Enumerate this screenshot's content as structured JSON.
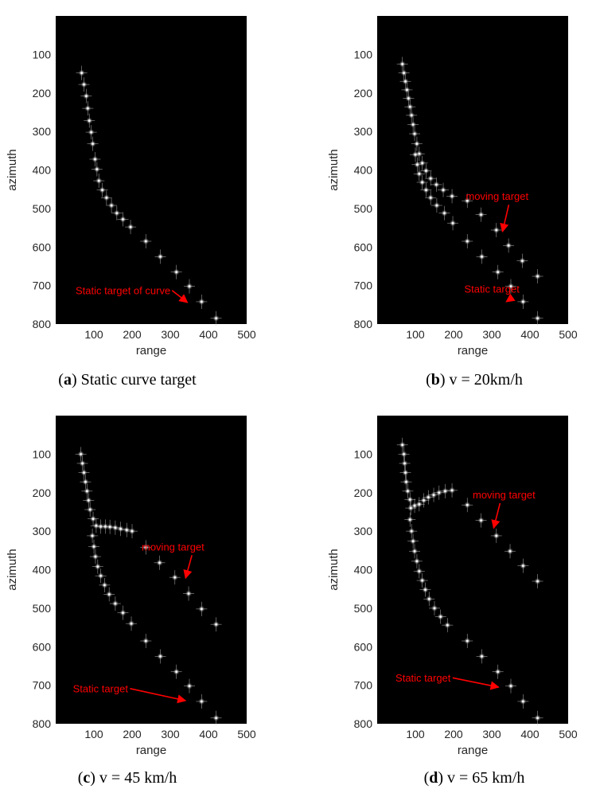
{
  "colors": {
    "plot_background": "#000000",
    "point_color": "#ffffff",
    "annotation_color": "#ff0000",
    "axis_text_color": "#262626"
  },
  "chart_data": [
    {
      "type": "scatter",
      "panel_label": "a",
      "caption": "Static curve target",
      "xlabel": "range",
      "ylabel": "azimuth",
      "xlim": [
        0,
        500
      ],
      "ylim": [
        800,
        0
      ],
      "y_reversed": true,
      "xticks": [
        100,
        200,
        300,
        400,
        500
      ],
      "yticks": [
        100,
        200,
        300,
        400,
        500,
        600,
        700,
        800
      ],
      "series": [
        {
          "points": [
            [
              68,
              148
            ],
            [
              74,
              178
            ],
            [
              80,
              208
            ],
            [
              84,
              240
            ],
            [
              88,
              272
            ],
            [
              93,
              302
            ],
            [
              97,
              332
            ],
            [
              103,
              372
            ],
            [
              108,
              398
            ],
            [
              113,
              428
            ],
            [
              122,
              452
            ],
            [
              133,
              472
            ],
            [
              146,
              492
            ],
            [
              160,
              512
            ],
            [
              176,
              528
            ],
            [
              196,
              548
            ],
            [
              236,
              585
            ],
            [
              274,
              625
            ],
            [
              316,
              665
            ],
            [
              350,
              702
            ],
            [
              382,
              742
            ],
            [
              420,
              785
            ]
          ]
        }
      ],
      "annotations": [
        {
          "text": "Static target of curve",
          "x": 52,
          "y": 722,
          "arrow_to": [
            345,
            744
          ]
        }
      ]
    },
    {
      "type": "scatter",
      "panel_label": "b",
      "caption": "v = 20km/h",
      "xlabel": "range",
      "ylabel": "azimuth",
      "xlim": [
        0,
        500
      ],
      "ylim": [
        800,
        0
      ],
      "y_reversed": true,
      "xticks": [
        100,
        200,
        300,
        400,
        500
      ],
      "yticks": [
        100,
        200,
        300,
        400,
        500,
        600,
        700,
        800
      ],
      "series": [
        {
          "points": [
            [
              66,
              125
            ],
            [
              70,
              148
            ],
            [
              74,
              170
            ],
            [
              78,
              192
            ],
            [
              82,
              214
            ],
            [
              86,
              236
            ],
            [
              90,
              258
            ],
            [
              94,
              282
            ],
            [
              98,
              306
            ],
            [
              104,
              332
            ],
            [
              110,
              358
            ],
            [
              118,
              382
            ],
            [
              128,
              402
            ],
            [
              140,
              422
            ],
            [
              155,
              438
            ],
            [
              173,
              452
            ],
            [
              196,
              468
            ],
            [
              236,
              480
            ],
            [
              272,
              516
            ],
            [
              312,
              556
            ],
            [
              344,
              596
            ],
            [
              380,
              636
            ],
            [
              420,
              676
            ]
          ]
        },
        {
          "points": [
            [
              100,
              360
            ],
            [
              105,
              386
            ],
            [
              110,
              410
            ],
            [
              118,
              432
            ],
            [
              128,
              452
            ],
            [
              140,
              472
            ],
            [
              156,
              492
            ],
            [
              176,
              512
            ],
            [
              198,
              538
            ],
            [
              236,
              585
            ],
            [
              274,
              625
            ],
            [
              316,
              665
            ],
            [
              350,
              702
            ],
            [
              382,
              742
            ],
            [
              420,
              785
            ]
          ]
        }
      ],
      "annotations": [
        {
          "text": "moving target",
          "x": 232,
          "y": 478,
          "arrow_to": [
            328,
            560
          ]
        },
        {
          "text": "Static target",
          "x": 228,
          "y": 718,
          "arrow_to": [
            338,
            742
          ]
        }
      ]
    },
    {
      "type": "scatter",
      "panel_label": "c",
      "caption": "v = 45 km/h",
      "xlabel": "range",
      "ylabel": "azimuth",
      "xlim": [
        0,
        500
      ],
      "ylim": [
        800,
        0
      ],
      "y_reversed": true,
      "xticks": [
        100,
        200,
        300,
        400,
        500
      ],
      "yticks": [
        100,
        200,
        300,
        400,
        500,
        600,
        700,
        800
      ],
      "series": [
        {
          "points": [
            [
              66,
              100
            ],
            [
              70,
              124
            ],
            [
              74,
              148
            ],
            [
              78,
              172
            ],
            [
              82,
              196
            ],
            [
              86,
              220
            ],
            [
              90,
              244
            ],
            [
              98,
              268
            ],
            [
              106,
              286
            ],
            [
              118,
              288
            ],
            [
              130,
              288
            ],
            [
              142,
              289
            ],
            [
              156,
              291
            ],
            [
              170,
              294
            ],
            [
              186,
              297
            ],
            [
              200,
              300
            ],
            [
              236,
              342
            ],
            [
              272,
              382
            ],
            [
              312,
              420
            ],
            [
              348,
              462
            ],
            [
              382,
              502
            ],
            [
              420,
              542
            ]
          ]
        },
        {
          "points": [
            [
              96,
              312
            ],
            [
              100,
              340
            ],
            [
              104,
              366
            ],
            [
              110,
              392
            ],
            [
              118,
              416
            ],
            [
              128,
              440
            ],
            [
              140,
              464
            ],
            [
              156,
              488
            ],
            [
              176,
              512
            ],
            [
              198,
              540
            ],
            [
              236,
              585
            ],
            [
              274,
              625
            ],
            [
              316,
              665
            ],
            [
              350,
              702
            ],
            [
              382,
              742
            ],
            [
              420,
              785
            ]
          ]
        }
      ],
      "annotations": [
        {
          "text": "moving target",
          "x": 225,
          "y": 350,
          "arrow_to": [
            340,
            422
          ]
        },
        {
          "text": "Static target",
          "x": 45,
          "y": 718,
          "arrow_to": [
            340,
            740
          ]
        }
      ]
    },
    {
      "type": "scatter",
      "panel_label": "d",
      "caption": "v = 65 km/h",
      "xlabel": "range",
      "ylabel": "azimuth",
      "xlim": [
        0,
        500
      ],
      "ylim": [
        800,
        0
      ],
      "y_reversed": true,
      "xticks": [
        100,
        200,
        300,
        400,
        500
      ],
      "yticks": [
        100,
        200,
        300,
        400,
        500,
        600,
        700,
        800
      ],
      "series": [
        {
          "points": [
            [
              66,
              76
            ],
            [
              70,
              100
            ],
            [
              72,
              124
            ],
            [
              74,
              148
            ],
            [
              76,
              172
            ],
            [
              80,
              196
            ],
            [
              86,
              218
            ],
            [
              98,
              234
            ],
            [
              110,
              230
            ],
            [
              122,
              220
            ],
            [
              134,
              212
            ],
            [
              148,
              206
            ],
            [
              162,
              200
            ],
            [
              178,
              196
            ],
            [
              196,
              194
            ],
            [
              236,
              232
            ],
            [
              272,
              272
            ],
            [
              312,
              312
            ],
            [
              348,
              352
            ],
            [
              382,
              390
            ],
            [
              420,
              430
            ]
          ]
        },
        {
          "points": [
            [
              88,
              240
            ],
            [
              86,
              270
            ],
            [
              90,
              300
            ],
            [
              94,
              326
            ],
            [
              98,
              352
            ],
            [
              104,
              378
            ],
            [
              110,
              404
            ],
            [
              118,
              428
            ],
            [
              126,
              452
            ],
            [
              136,
              476
            ],
            [
              150,
              500
            ],
            [
              166,
              522
            ],
            [
              184,
              544
            ],
            [
              236,
              585
            ],
            [
              274,
              625
            ],
            [
              316,
              665
            ],
            [
              350,
              702
            ],
            [
              382,
              742
            ],
            [
              420,
              785
            ]
          ]
        }
      ],
      "annotations": [
        {
          "text": "moving target",
          "x": 250,
          "y": 215,
          "arrow_to": [
            305,
            292
          ]
        },
        {
          "text": "Static target",
          "x": 48,
          "y": 690,
          "arrow_to": [
            318,
            705
          ]
        }
      ]
    }
  ]
}
